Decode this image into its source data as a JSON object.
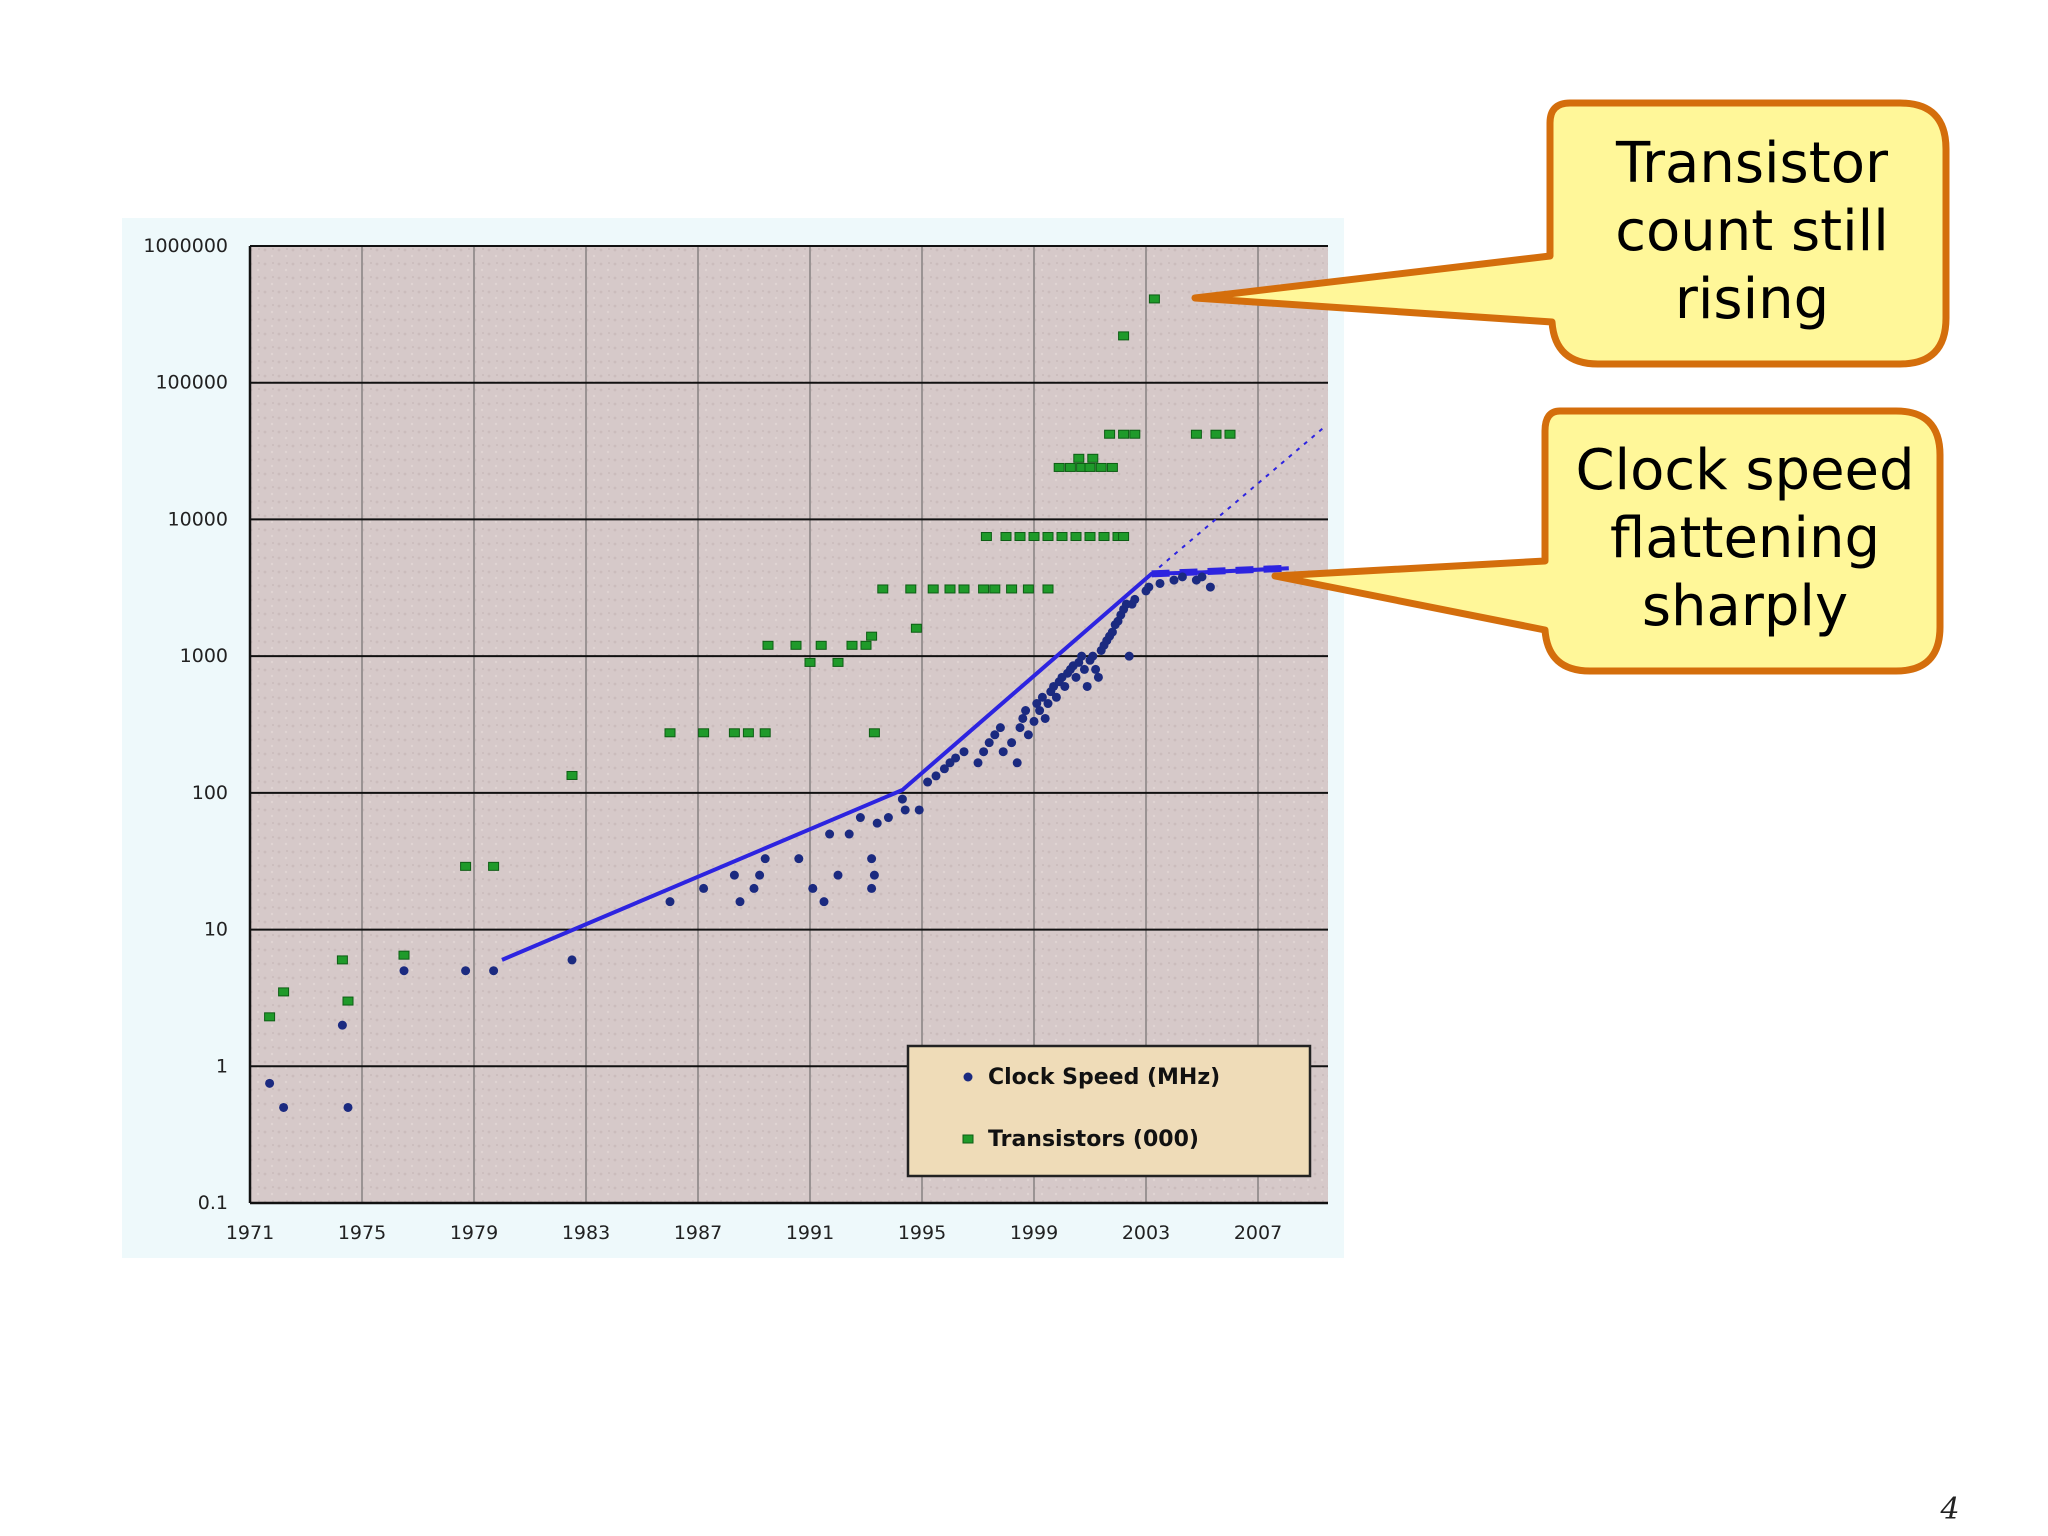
{
  "slide": {
    "page_number": "4"
  },
  "callouts": [
    {
      "lines": [
        "Transistor",
        "count still",
        "rising"
      ]
    },
    {
      "lines": [
        "Clock speed",
        "flattening",
        "sharply"
      ]
    }
  ],
  "colors": {
    "plot_background": "#d6c9c9",
    "clock_marker": "#1b2a80",
    "transistor_marker": "#1f9a2a",
    "trend_line": "#2d24e0",
    "callout_fill": "#fff799",
    "callout_border": "#d46e0c",
    "legend_fill": "#efdcb8"
  },
  "chart_data": {
    "type": "scatter",
    "log_scale_y": true,
    "grid": true,
    "legend_position": "bottom-right",
    "xlim": [
      1971,
      2009.5
    ],
    "ylim": [
      0.1,
      1000000
    ],
    "x_ticks": [
      "1971",
      "1975",
      "1979",
      "1983",
      "1987",
      "1991",
      "1995",
      "1999",
      "2003",
      "2007"
    ],
    "y_ticks": [
      "1000000",
      "100000",
      "10000",
      "1000",
      "100",
      "10",
      "1",
      "0.1"
    ],
    "legend": [
      "Clock Speed (MHz)",
      "Transistors (000)"
    ],
    "series": [
      {
        "name": "Clock Speed (MHz)",
        "marker": "dot",
        "points": [
          [
            1971.7,
            0.75
          ],
          [
            1972.2,
            0.5
          ],
          [
            1974.3,
            2
          ],
          [
            1974.5,
            0.5
          ],
          [
            1976.5,
            5
          ],
          [
            1978.7,
            5
          ],
          [
            1979.7,
            5
          ],
          [
            1982.5,
            6
          ],
          [
            1986,
            16
          ],
          [
            1987.2,
            20
          ],
          [
            1988.3,
            25
          ],
          [
            1988.5,
            16
          ],
          [
            1989,
            20
          ],
          [
            1989.2,
            25
          ],
          [
            1989.4,
            33
          ],
          [
            1990.6,
            33
          ],
          [
            1991.1,
            20
          ],
          [
            1991.5,
            16
          ],
          [
            1991.7,
            50
          ],
          [
            1992,
            25
          ],
          [
            1992.4,
            50
          ],
          [
            1992.8,
            66
          ],
          [
            1993.2,
            33
          ],
          [
            1993.3,
            25
          ],
          [
            1993.2,
            20
          ],
          [
            1993.4,
            60
          ],
          [
            1993.8,
            66
          ],
          [
            1994.3,
            90
          ],
          [
            1994.4,
            75
          ],
          [
            1994.9,
            75
          ],
          [
            1995.2,
            120
          ],
          [
            1995.5,
            133
          ],
          [
            1995.8,
            150
          ],
          [
            1996,
            166
          ],
          [
            1996.2,
            180
          ],
          [
            1996.5,
            200
          ],
          [
            1997,
            166
          ],
          [
            1997.2,
            200
          ],
          [
            1997.4,
            233
          ],
          [
            1997.6,
            266
          ],
          [
            1997.8,
            300
          ],
          [
            1997.9,
            200
          ],
          [
            1998.2,
            233
          ],
          [
            1998.4,
            166
          ],
          [
            1998.5,
            300
          ],
          [
            1998.6,
            350
          ],
          [
            1998.7,
            400
          ],
          [
            1998.8,
            266
          ],
          [
            1999,
            333
          ],
          [
            1999.1,
            450
          ],
          [
            1999.2,
            400
          ],
          [
            1999.3,
            500
          ],
          [
            1999.4,
            350
          ],
          [
            1999.5,
            450
          ],
          [
            1999.6,
            550
          ],
          [
            1999.7,
            600
          ],
          [
            1999.8,
            500
          ],
          [
            1999.9,
            650
          ],
          [
            2000,
            700
          ],
          [
            2000.1,
            600
          ],
          [
            2000.2,
            750
          ],
          [
            2000.3,
            800
          ],
          [
            2000.4,
            850
          ],
          [
            2000.5,
            700
          ],
          [
            2000.6,
            900
          ],
          [
            2000.7,
            1000
          ],
          [
            2000.8,
            800
          ],
          [
            2000.9,
            600
          ],
          [
            2001,
            933
          ],
          [
            2001.1,
            1000
          ],
          [
            2001.2,
            800
          ],
          [
            2001.3,
            700
          ],
          [
            2001.4,
            1100
          ],
          [
            2001.5,
            1200
          ],
          [
            2001.6,
            1300
          ],
          [
            2001.7,
            1400
          ],
          [
            2001.8,
            1500
          ],
          [
            2001.9,
            1700
          ],
          [
            2002,
            1800
          ],
          [
            2002.1,
            2000
          ],
          [
            2002.2,
            2200
          ],
          [
            2002.3,
            2400
          ],
          [
            2002.4,
            1000
          ],
          [
            2002.5,
            2400
          ],
          [
            2002.6,
            2600
          ],
          [
            2003,
            3000
          ],
          [
            2003.1,
            3200
          ],
          [
            2003.5,
            3400
          ],
          [
            2004,
            3600
          ],
          [
            2004.3,
            3800
          ],
          [
            2004.8,
            3600
          ],
          [
            2005,
            3800
          ],
          [
            2005.3,
            3200
          ]
        ]
      },
      {
        "name": "Transistors (000)",
        "marker": "square",
        "points": [
          [
            1971.7,
            2.3
          ],
          [
            1972.2,
            3.5
          ],
          [
            1974.3,
            6
          ],
          [
            1974.5,
            3
          ],
          [
            1976.5,
            6.5
          ],
          [
            1978.7,
            29
          ],
          [
            1979.7,
            29
          ],
          [
            1982.5,
            134
          ],
          [
            1986,
            275
          ],
          [
            1987.2,
            275
          ],
          [
            1988.3,
            275
          ],
          [
            1988.8,
            275
          ],
          [
            1989.4,
            275
          ],
          [
            1989.5,
            1200
          ],
          [
            1990.5,
            1200
          ],
          [
            1991,
            900
          ],
          [
            1991.4,
            1200
          ],
          [
            1992,
            900
          ],
          [
            1992.5,
            1200
          ],
          [
            1993,
            1200
          ],
          [
            1993.2,
            1400
          ],
          [
            1993.3,
            275
          ],
          [
            1993.6,
            3100
          ],
          [
            1994.6,
            3100
          ],
          [
            1994.8,
            1600
          ],
          [
            1995.4,
            3100
          ],
          [
            1996,
            3100
          ],
          [
            1996.5,
            3100
          ],
          [
            1997.2,
            3100
          ],
          [
            1997.6,
            3100
          ],
          [
            1998.2,
            3100
          ],
          [
            1998.8,
            3100
          ],
          [
            1999.5,
            3100
          ],
          [
            1997.3,
            7500
          ],
          [
            1998,
            7500
          ],
          [
            1998.5,
            7500
          ],
          [
            1999,
            7500
          ],
          [
            1999.5,
            7500
          ],
          [
            2000,
            7500
          ],
          [
            2000.5,
            7500
          ],
          [
            2001,
            7500
          ],
          [
            2001.5,
            7500
          ],
          [
            2002,
            7500
          ],
          [
            2002.2,
            7500
          ],
          [
            1999.9,
            24000
          ],
          [
            2000.3,
            24000
          ],
          [
            2000.7,
            24000
          ],
          [
            2001,
            24000
          ],
          [
            2001.4,
            24000
          ],
          [
            2001.8,
            24000
          ],
          [
            2000.6,
            28000
          ],
          [
            2001.1,
            28000
          ],
          [
            2001.7,
            42000
          ],
          [
            2002.2,
            42000
          ],
          [
            2002.6,
            42000
          ],
          [
            2004.8,
            42000
          ],
          [
            2005.5,
            42000
          ],
          [
            2006,
            42000
          ],
          [
            2002.2,
            220000
          ],
          [
            2003.3,
            410000
          ]
        ]
      }
    ],
    "trend_lines": [
      {
        "points": [
          [
            1980,
            6
          ],
          [
            1994.3,
            105
          ],
          [
            2003.2,
            4000
          ],
          [
            2005,
            4100
          ],
          [
            2008.1,
            4400
          ]
        ]
      },
      {
        "style": "dotted",
        "points": [
          [
            2003.2,
            4000
          ],
          [
            2009.4,
            48000
          ]
        ]
      }
    ]
  }
}
